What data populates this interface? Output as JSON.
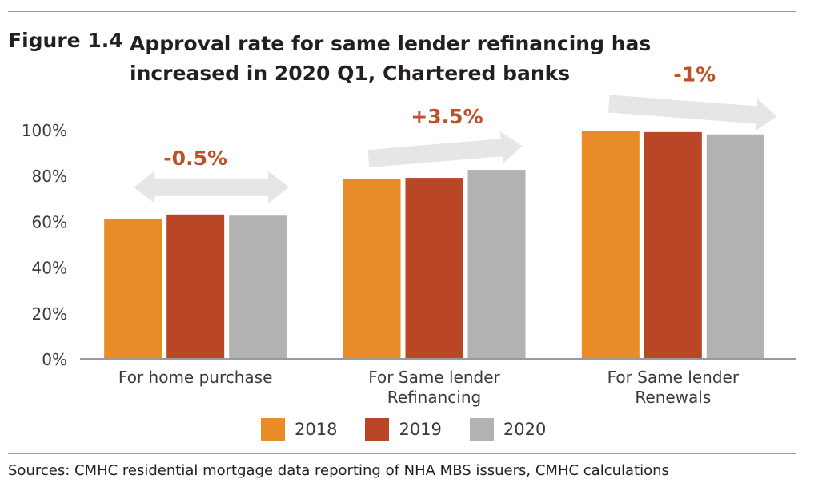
{
  "figure": {
    "label": "Figure 1.4",
    "title": "Approval rate for same lender refinancing has increased in 2020 Q1, Chartered banks"
  },
  "source": "Sources: CMHC residential mortgage data reporting of NHA MBS issuers, CMHC calculations",
  "chart_data": {
    "type": "bar",
    "categories": [
      [
        "For home purchase"
      ],
      [
        "For Same lender",
        "Refinancing"
      ],
      [
        "For Same lender",
        "Renewals"
      ]
    ],
    "series": [
      {
        "name": "2018",
        "values": [
          61,
          78.5,
          99.5
        ],
        "color": "#e98b27"
      },
      {
        "name": "2019",
        "values": [
          63,
          79,
          99
        ],
        "color": "#b94727"
      },
      {
        "name": "2020",
        "values": [
          62.5,
          82.5,
          98
        ],
        "color": "#b3b2b2"
      }
    ],
    "ylim": [
      0,
      100
    ],
    "yticks": [
      "0%",
      "20%",
      "40%",
      "60%",
      "80%",
      "100%"
    ],
    "ytick_values": [
      0,
      20,
      40,
      60,
      80,
      100
    ],
    "annotations": [
      {
        "category": 0,
        "label": "-0.5%",
        "arrow": "double-headed",
        "color": "#c0502a"
      },
      {
        "category": 1,
        "label": "+3.5%",
        "arrow": "right-up",
        "color": "#c0502a"
      },
      {
        "category": 2,
        "label": "-1%",
        "arrow": "right-down",
        "color": "#c0502a"
      }
    ],
    "arrow_color": "#e6e6e6",
    "axis_color": "#9a9a9a",
    "grid": false,
    "legend_position": "bottom"
  }
}
